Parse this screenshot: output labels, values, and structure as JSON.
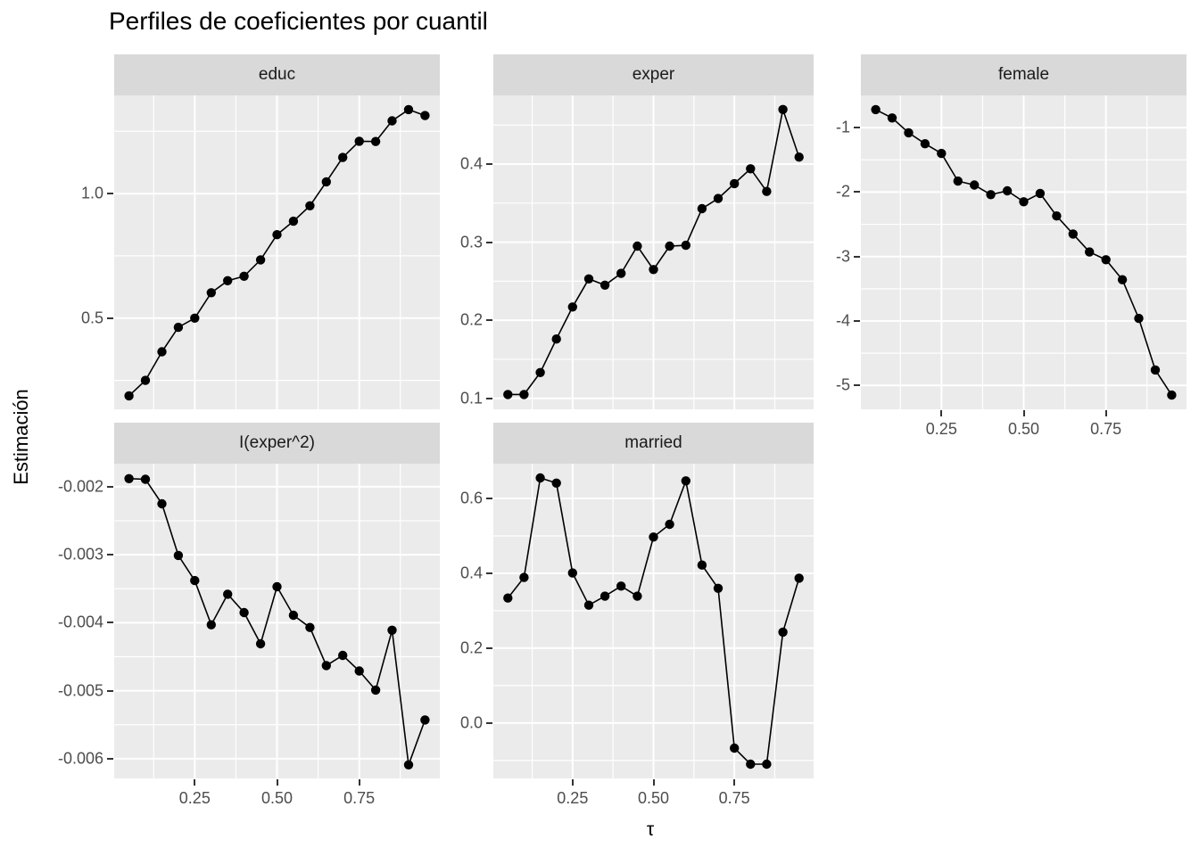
{
  "chart_data": {
    "type": "line",
    "title": "Perfiles de coeficientes por cuantil",
    "xlabel": "τ",
    "ylabel": "Estimación",
    "facet_variable_labels": [
      "educ",
      "exper",
      "female",
      "I(exper^2)",
      "married"
    ],
    "legend": "none",
    "grid": "on",
    "x": [
      0.05,
      0.1,
      0.15,
      0.2,
      0.25,
      0.3,
      0.35,
      0.4,
      0.45,
      0.5,
      0.55,
      0.6,
      0.65,
      0.7,
      0.75,
      0.8,
      0.85,
      0.9,
      0.95
    ],
    "xlim": [
      0.005,
      0.995
    ],
    "x_ticks": {
      "values": [
        0.25,
        0.5,
        0.75
      ],
      "labels": [
        "0.25",
        "0.50",
        "0.75"
      ]
    },
    "x_minor": [
      0.125,
      0.375,
      0.625,
      0.875
    ],
    "panels": [
      {
        "label": "educ",
        "ylim": [
          0.134,
          1.394
        ],
        "y_ticks": {
          "values": [
            0.5,
            1.0
          ],
          "labels": [
            "0.5",
            "1.0"
          ]
        },
        "y_minor": [
          0.25,
          0.75,
          1.25
        ],
        "values": [
          0.188,
          0.25,
          0.365,
          0.463,
          0.5,
          0.602,
          0.65,
          0.668,
          0.734,
          0.835,
          0.889,
          0.951,
          1.047,
          1.145,
          1.21,
          1.209,
          1.292,
          1.337,
          1.313
        ]
      },
      {
        "label": "exper",
        "ylim": [
          0.086,
          0.488
        ],
        "y_ticks": {
          "values": [
            0.1,
            0.2,
            0.3,
            0.4
          ],
          "labels": [
            "0.1",
            "0.2",
            "0.3",
            "0.4"
          ]
        },
        "y_minor": [
          0.15,
          0.25,
          0.35,
          0.45
        ],
        "values": [
          0.105,
          0.105,
          0.133,
          0.176,
          0.217,
          0.253,
          0.245,
          0.26,
          0.295,
          0.265,
          0.295,
          0.296,
          0.343,
          0.356,
          0.375,
          0.394,
          0.365,
          0.47,
          0.409
        ]
      },
      {
        "label": "female",
        "ylim": [
          -5.37,
          -0.5
        ],
        "y_ticks": {
          "values": [
            -1,
            -2,
            -3,
            -4,
            -5
          ],
          "labels": [
            "-1",
            "-2",
            "-3",
            "-4",
            "-5"
          ]
        },
        "y_minor": [
          -1.5,
          -2.5,
          -3.5,
          -4.5
        ],
        "values": [
          -0.72,
          -0.85,
          -1.08,
          -1.25,
          -1.4,
          -1.83,
          -1.89,
          -2.04,
          -1.98,
          -2.15,
          -2.02,
          -2.37,
          -2.65,
          -2.93,
          -3.05,
          -3.36,
          -3.96,
          -4.76,
          -5.15
        ]
      },
      {
        "label": "I(exper^2)",
        "ylim": [
          -0.00629,
          -0.00166
        ],
        "y_ticks": {
          "values": [
            -0.002,
            -0.003,
            -0.004,
            -0.005,
            -0.006
          ],
          "labels": [
            "-0.002",
            "-0.003",
            "-0.004",
            "-0.005",
            "-0.006"
          ]
        },
        "y_minor": [
          -0.0025,
          -0.0035,
          -0.0045,
          -0.0055
        ],
        "values": [
          -0.00188,
          -0.00189,
          -0.00225,
          -0.00301,
          -0.00338,
          -0.00403,
          -0.00358,
          -0.00385,
          -0.00431,
          -0.00347,
          -0.00389,
          -0.00407,
          -0.00463,
          -0.00448,
          -0.00471,
          -0.00499,
          -0.00411,
          -0.00609,
          -0.00543
        ]
      },
      {
        "label": "married",
        "ylim": [
          -0.148,
          0.693
        ],
        "y_ticks": {
          "values": [
            0.0,
            0.2,
            0.4,
            0.6
          ],
          "labels": [
            "0.0",
            "0.2",
            "0.4",
            "0.6"
          ]
        },
        "y_minor": [
          -0.1,
          0.1,
          0.3,
          0.5
        ],
        "values": [
          0.334,
          0.389,
          0.655,
          0.641,
          0.401,
          0.315,
          0.339,
          0.366,
          0.339,
          0.497,
          0.531,
          0.647,
          0.422,
          0.36,
          -0.067,
          -0.11,
          -0.11,
          0.243,
          0.387
        ]
      }
    ],
    "colors": {
      "panel_bg": "#EBEBEB",
      "strip_bg": "#D9D9D9",
      "grid": "#FFFFFF",
      "series": "#000000",
      "axis_text": "#4D4D4D",
      "tick_mark": "#333333",
      "title_text": "#000000"
    }
  }
}
